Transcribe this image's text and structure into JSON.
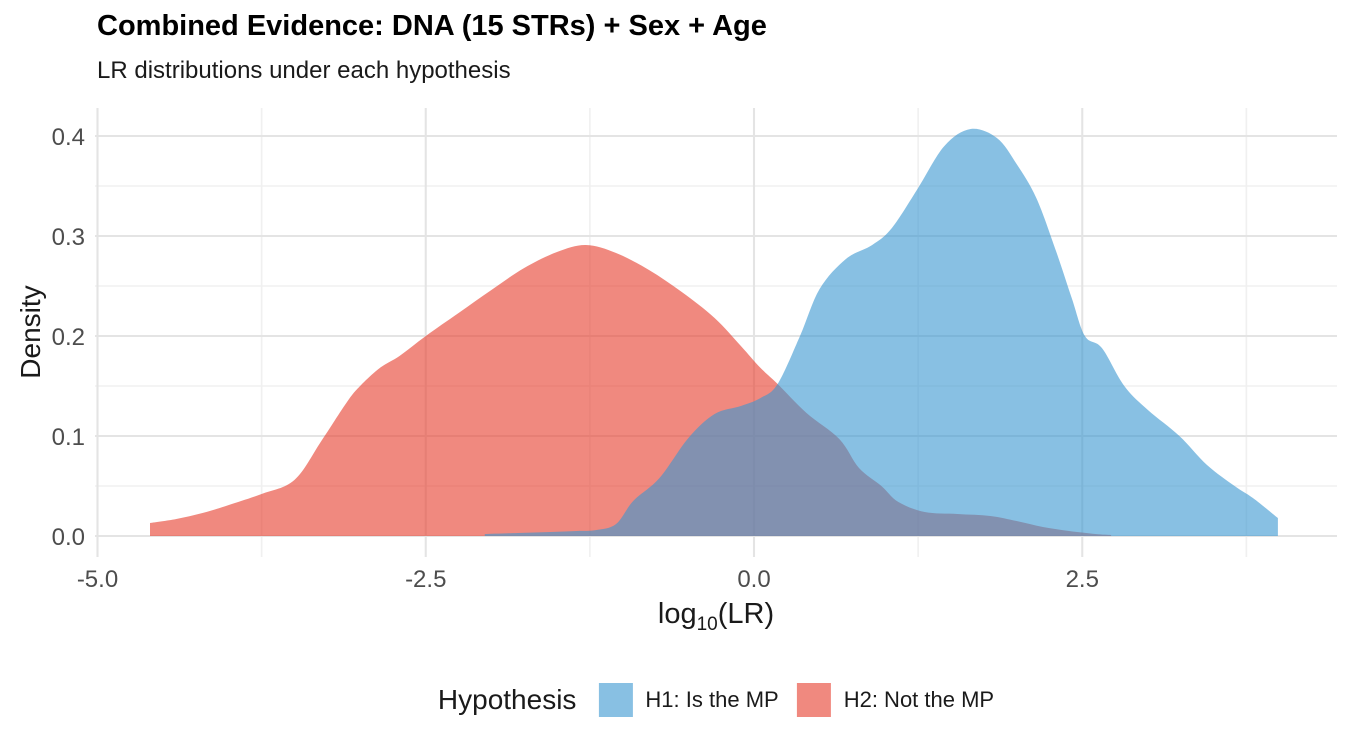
{
  "title": "Combined Evidence: DNA (15 STRs) + Sex + Age",
  "subtitle": "LR distributions under each hypothesis",
  "legend": {
    "title": "Hypothesis",
    "items": [
      {
        "label": "H1: Is the MP",
        "color": "#3996d1",
        "opacity": 0.6
      },
      {
        "label": "H2: Not the MP",
        "color": "#e64130",
        "opacity": 0.62
      }
    ]
  },
  "chart_data": {
    "type": "area",
    "title": "Combined Evidence: DNA (15 STRs) + Sex + Age",
    "subtitle": "LR distributions under each hypothesis",
    "xlabel": {
      "prefix": "log",
      "sub": "10",
      "suffix": "(LR)"
    },
    "ylabel": "Density",
    "xlim": [
      -5.05,
      4.45
    ],
    "ylim": [
      0,
      0.429
    ],
    "grid": true,
    "legend_position": "bottom",
    "legend_title": "Hypothesis",
    "x_ticks": [
      {
        "value": -5.0,
        "label": "-5.0"
      },
      {
        "value": -2.5,
        "label": "-2.5"
      },
      {
        "value": 0.0,
        "label": "0.0"
      },
      {
        "value": 2.5,
        "label": "2.5"
      }
    ],
    "y_ticks": [
      {
        "value": 0.0,
        "label": "0.0"
      },
      {
        "value": 0.1,
        "label": "0.1"
      },
      {
        "value": 0.2,
        "label": "0.2"
      },
      {
        "value": 0.3,
        "label": "0.3"
      },
      {
        "value": 0.4,
        "label": "0.4"
      }
    ],
    "x_minor": [
      -3.75,
      -1.25,
      1.25,
      3.75
    ],
    "y_minor": [
      0.05,
      0.15,
      0.25,
      0.35
    ],
    "series": [
      {
        "name": "H2: Not the MP",
        "hypothesis": "H2",
        "fill": "#e64130",
        "fill_opacity": 0.62,
        "points": [
          [
            -4.6,
            0.013
          ],
          [
            -4.4,
            0.017
          ],
          [
            -4.2,
            0.023
          ],
          [
            -4.0,
            0.031
          ],
          [
            -3.75,
            0.042
          ],
          [
            -3.5,
            0.056
          ],
          [
            -3.3,
            0.094
          ],
          [
            -3.1,
            0.134
          ],
          [
            -3.0,
            0.15
          ],
          [
            -2.85,
            0.168
          ],
          [
            -2.7,
            0.18
          ],
          [
            -2.5,
            0.2
          ],
          [
            -2.25,
            0.223
          ],
          [
            -2.0,
            0.246
          ],
          [
            -1.75,
            0.268
          ],
          [
            -1.5,
            0.284
          ],
          [
            -1.28,
            0.291
          ],
          [
            -1.05,
            0.283
          ],
          [
            -0.8,
            0.266
          ],
          [
            -0.55,
            0.244
          ],
          [
            -0.3,
            0.218
          ],
          [
            -0.1,
            0.19
          ],
          [
            0.05,
            0.168
          ],
          [
            0.18,
            0.152
          ],
          [
            0.4,
            0.123
          ],
          [
            0.65,
            0.097
          ],
          [
            0.8,
            0.068
          ],
          [
            0.97,
            0.05
          ],
          [
            1.1,
            0.034
          ],
          [
            1.3,
            0.024
          ],
          [
            1.55,
            0.022
          ],
          [
            1.8,
            0.02
          ],
          [
            2.0,
            0.015
          ],
          [
            2.2,
            0.009
          ],
          [
            2.4,
            0.005
          ],
          [
            2.6,
            0.002
          ],
          [
            2.72,
            0.001
          ]
        ]
      },
      {
        "name": "H1: Is the MP",
        "hypothesis": "H1",
        "fill": "#3996d1",
        "fill_opacity": 0.6,
        "points": [
          [
            -2.05,
            0.002
          ],
          [
            -1.8,
            0.003
          ],
          [
            -1.55,
            0.004
          ],
          [
            -1.35,
            0.005
          ],
          [
            -1.2,
            0.006
          ],
          [
            -1.05,
            0.012
          ],
          [
            -0.92,
            0.035
          ],
          [
            -0.72,
            0.058
          ],
          [
            -0.5,
            0.098
          ],
          [
            -0.3,
            0.122
          ],
          [
            -0.1,
            0.13
          ],
          [
            0.05,
            0.138
          ],
          [
            0.18,
            0.152
          ],
          [
            0.35,
            0.2
          ],
          [
            0.5,
            0.247
          ],
          [
            0.7,
            0.277
          ],
          [
            0.9,
            0.291
          ],
          [
            1.05,
            0.308
          ],
          [
            1.25,
            0.348
          ],
          [
            1.45,
            0.39
          ],
          [
            1.65,
            0.407
          ],
          [
            1.85,
            0.398
          ],
          [
            2.0,
            0.372
          ],
          [
            2.15,
            0.338
          ],
          [
            2.3,
            0.285
          ],
          [
            2.42,
            0.238
          ],
          [
            2.52,
            0.2
          ],
          [
            2.65,
            0.188
          ],
          [
            2.82,
            0.15
          ],
          [
            3.0,
            0.126
          ],
          [
            3.24,
            0.1
          ],
          [
            3.45,
            0.071
          ],
          [
            3.66,
            0.05
          ],
          [
            3.8,
            0.038
          ],
          [
            3.99,
            0.018
          ]
        ]
      }
    ]
  }
}
